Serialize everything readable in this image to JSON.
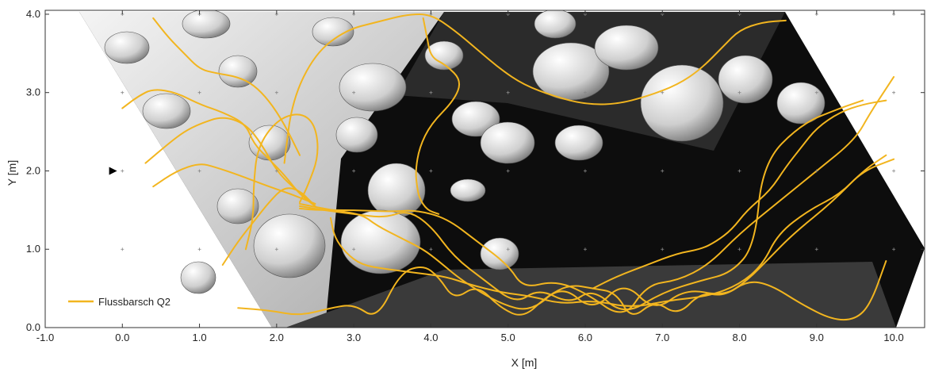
{
  "chart_data": {
    "type": "line",
    "xlabel": "X [m]",
    "ylabel": "Y [m]",
    "xlim": [
      -1.0,
      10.4
    ],
    "ylim": [
      0.0,
      4.05
    ],
    "x_ticks": [
      "-1.0",
      "0.0",
      "1.0",
      "2.0",
      "3.0",
      "4.0",
      "5.0",
      "6.0",
      "7.0",
      "8.0",
      "9.0",
      "10.0"
    ],
    "y_ticks": [
      "0.0",
      "1.0",
      "2.0",
      "3.0",
      "4.0"
    ],
    "grid": "dotted markers",
    "legend_position": "bottom-left",
    "background": "grayscale shaded relief of river-bed boulders (terrain rendering)",
    "series_color": "#F2B51F",
    "start_marker": {
      "x": -0.12,
      "y": 2.0
    },
    "series": [
      {
        "name": "Flussbarsch Q2",
        "tracks": [
          {
            "x": [
              2.3,
              2.5,
              3.0,
              3.5,
              3.8,
              4.2,
              4.6,
              5.0,
              5.2,
              5.6,
              6.0,
              6.5,
              6.8,
              7.2,
              7.6,
              8.0,
              8.5,
              9.0,
              9.5,
              9.7,
              10.0
            ],
            "y": [
              1.52,
              1.5,
              1.5,
              1.48,
              1.5,
              1.4,
              1.1,
              0.8,
              0.5,
              0.6,
              0.45,
              0.1,
              0.55,
              0.6,
              0.8,
              1.2,
              1.6,
              2.0,
              2.4,
              2.75,
              3.2
            ]
          },
          {
            "x": [
              2.3,
              2.6,
              3.0,
              3.4,
              3.7,
              4.0,
              4.3,
              4.7,
              5.1,
              5.4,
              5.8,
              6.1,
              6.5,
              7.0,
              7.5,
              7.9,
              8.2,
              8.3,
              8.8,
              9.3,
              9.6
            ],
            "y": [
              1.55,
              1.5,
              1.45,
              1.4,
              1.5,
              1.3,
              0.9,
              0.6,
              0.3,
              0.5,
              0.3,
              0.5,
              0.15,
              0.45,
              0.6,
              0.7,
              1.05,
              2.1,
              2.6,
              2.8,
              2.9
            ]
          },
          {
            "x": [
              2.3,
              2.7,
              3.1,
              3.3,
              3.6,
              3.9,
              4.1,
              4.4,
              4.9,
              5.3,
              5.7,
              6.1,
              6.5,
              6.9,
              7.3,
              7.8,
              8.1,
              8.4,
              8.7,
              9.2,
              9.6,
              9.9
            ],
            "y": [
              1.58,
              1.5,
              1.45,
              1.3,
              1.15,
              1.0,
              0.85,
              0.6,
              0.3,
              0.2,
              0.55,
              0.2,
              0.6,
              0.2,
              0.5,
              0.4,
              0.6,
              0.9,
              1.2,
              1.6,
              2.0,
              2.2
            ]
          },
          {
            "x": [
              1.5,
              1.9,
              2.3,
              2.7,
              3.0,
              3.3,
              3.6,
              3.9,
              4.1,
              4.3,
              4.6,
              4.9,
              5.2,
              5.5,
              5.8,
              6.1,
              6.4,
              6.6,
              6.9,
              7.2,
              7.5,
              7.8,
              8.1,
              8.4,
              8.8,
              9.2,
              9.5,
              9.7,
              9.9
            ],
            "y": [
              0.25,
              0.22,
              0.15,
              0.25,
              0.3,
              0.1,
              0.7,
              0.8,
              0.65,
              0.35,
              0.55,
              0.25,
              0.12,
              0.4,
              0.55,
              0.5,
              0.45,
              0.1,
              0.35,
              0.15,
              0.45,
              0.4,
              0.6,
              0.55,
              0.3,
              0.1,
              0.1,
              0.3,
              0.85
            ]
          },
          {
            "x": [
              0.3,
              0.6,
              0.8,
              1.0,
              1.3,
              1.6,
              1.8,
              2.0,
              2.2,
              2.4,
              2.5
            ],
            "y": [
              2.1,
              2.35,
              2.5,
              2.6,
              2.7,
              2.6,
              2.35,
              2.0,
              1.8,
              1.65,
              1.55
            ]
          },
          {
            "x": [
              0.0,
              0.2,
              0.4,
              0.7,
              1.0,
              1.3,
              1.6,
              1.7,
              1.9,
              2.1,
              2.3,
              2.5
            ],
            "y": [
              2.8,
              2.95,
              3.05,
              3.0,
              2.85,
              2.75,
              2.6,
              2.35,
              2.15,
              1.95,
              1.7,
              1.55
            ]
          },
          {
            "x": [
              0.4,
              0.7,
              1.0,
              1.2,
              1.5,
              1.9,
              2.2,
              2.5
            ],
            "y": [
              1.8,
              2.0,
              2.1,
              2.05,
              1.95,
              1.8,
              1.7,
              1.58
            ]
          },
          {
            "x": [
              1.6,
              1.7,
              1.7,
              1.75,
              2.0,
              2.3,
              2.5,
              2.55,
              2.4,
              2.3
            ],
            "y": [
              1.0,
              1.4,
              1.8,
              2.3,
              2.65,
              2.75,
              2.6,
              2.2,
              1.8,
              1.6
            ]
          },
          {
            "x": [
              1.3,
              1.5,
              1.7,
              1.9,
              2.1,
              2.3,
              2.45
            ],
            "y": [
              0.8,
              1.1,
              1.35,
              1.6,
              1.8,
              1.75,
              1.6
            ]
          },
          {
            "x": [
              0.4,
              0.6,
              0.8,
              1.0,
              1.2,
              1.5,
              1.7,
              1.9,
              2.1,
              2.3
            ],
            "y": [
              3.95,
              3.7,
              3.5,
              3.3,
              3.25,
              3.2,
              3.1,
              2.9,
              2.6,
              2.2
            ]
          },
          {
            "x": [
              2.1,
              2.2,
              2.5,
              2.9,
              3.3,
              3.7,
              4.0,
              4.3,
              4.6,
              4.9,
              5.2,
              5.6,
              6.0,
              6.4,
              6.8,
              7.2,
              7.5,
              7.8,
              8.0,
              8.3,
              8.6
            ],
            "y": [
              2.1,
              2.9,
              3.5,
              3.8,
              3.9,
              4.0,
              4.0,
              3.8,
              3.55,
              3.3,
              3.1,
              2.95,
              2.85,
              2.85,
              2.95,
              3.1,
              3.3,
              3.6,
              3.8,
              3.9,
              3.92
            ]
          },
          {
            "x": [
              3.9,
              3.95,
              4.0,
              4.2,
              4.4,
              4.3,
              4.0,
              3.85,
              3.8,
              3.82,
              3.85,
              3.95,
              4.1
            ],
            "y": [
              3.95,
              3.7,
              3.45,
              3.35,
              3.15,
              2.9,
              2.6,
              2.3,
              2.0,
              1.8,
              1.65,
              1.5,
              1.45
            ]
          },
          {
            "x": [
              2.7,
              2.75,
              2.9,
              3.1,
              3.4,
              3.8,
              4.2,
              4.5,
              4.9,
              5.3,
              5.7,
              6.1,
              6.6,
              7.1,
              7.6,
              8.0,
              8.3,
              8.5,
              8.9,
              9.3,
              9.6,
              10.0
            ],
            "y": [
              1.4,
              1.15,
              0.95,
              0.8,
              0.75,
              0.7,
              0.65,
              0.55,
              0.45,
              0.4,
              0.3,
              0.35,
              0.25,
              0.35,
              0.4,
              0.55,
              0.8,
              1.2,
              1.5,
              1.7,
              2.0,
              2.15
            ]
          },
          {
            "x": [
              6.1,
              6.4,
              6.8,
              7.2,
              7.5,
              7.7,
              7.9,
              8.1,
              8.4,
              8.6,
              8.8,
              9.0,
              9.3,
              9.6,
              9.9
            ],
            "y": [
              0.5,
              0.65,
              0.8,
              0.95,
              1.0,
              1.1,
              1.25,
              1.5,
              1.75,
              2.05,
              2.3,
              2.55,
              2.75,
              2.85,
              2.9
            ]
          }
        ]
      }
    ]
  },
  "legend": {
    "items": [
      {
        "label": "Flussbarsch Q2",
        "color": "#F2B51F"
      }
    ]
  }
}
